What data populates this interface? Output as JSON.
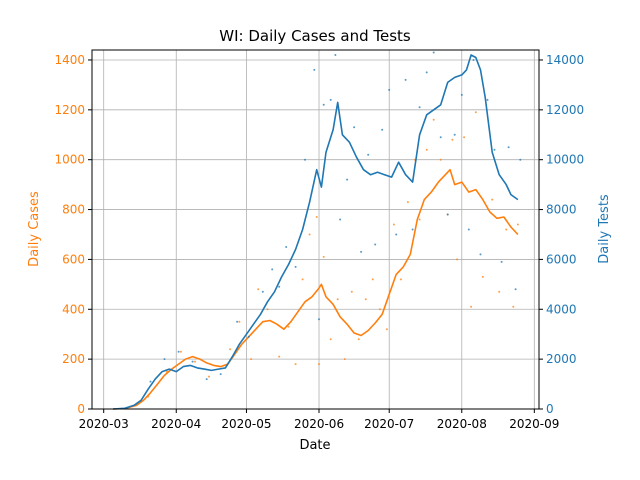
{
  "chart_data": {
    "type": "line",
    "title": "WI: Daily Cases and Tests",
    "xlabel": "Date",
    "ylabel_left": "Daily Cases",
    "ylabel_right": "Daily Tests",
    "xlim": [
      "2020-02-25",
      "2020-09-03"
    ],
    "ylim_left": [
      0,
      1440
    ],
    "ylim_right": [
      0,
      14400
    ],
    "grid": true,
    "x_ticks": [
      "2020-03",
      "2020-04",
      "2020-05",
      "2020-06",
      "2020-07",
      "2020-08",
      "2020-09"
    ],
    "left_ticks": [
      "0",
      "200",
      "400",
      "600",
      "800",
      "1000",
      "1200",
      "1400"
    ],
    "right_ticks": [
      "0",
      "2000",
      "4000",
      "6000",
      "8000",
      "10000",
      "12000",
      "14000"
    ],
    "colors": {
      "cases": "#ff7f0e",
      "tests": "#1f77b4",
      "grid": "#b0b0b0",
      "axis": "#000000"
    },
    "series": [
      {
        "name": "Daily Cases",
        "axis": "left",
        "color": "#ff7f0e",
        "points": [
          [
            "2020-03-05",
            0
          ],
          [
            "2020-03-10",
            2
          ],
          [
            "2020-03-15",
            15
          ],
          [
            "2020-03-18",
            35
          ],
          [
            "2020-03-21",
            65
          ],
          [
            "2020-03-24",
            100
          ],
          [
            "2020-03-27",
            135
          ],
          [
            "2020-03-30",
            160
          ],
          [
            "2020-04-02",
            180
          ],
          [
            "2020-04-05",
            200
          ],
          [
            "2020-04-08",
            210
          ],
          [
            "2020-04-11",
            200
          ],
          [
            "2020-04-14",
            185
          ],
          [
            "2020-04-17",
            175
          ],
          [
            "2020-04-20",
            170
          ],
          [
            "2020-04-23",
            180
          ],
          [
            "2020-04-26",
            220
          ],
          [
            "2020-04-29",
            260
          ],
          [
            "2020-05-02",
            290
          ],
          [
            "2020-05-05",
            320
          ],
          [
            "2020-05-08",
            350
          ],
          [
            "2020-05-11",
            355
          ],
          [
            "2020-05-14",
            340
          ],
          [
            "2020-05-17",
            320
          ],
          [
            "2020-05-20",
            350
          ],
          [
            "2020-05-23",
            390
          ],
          [
            "2020-05-26",
            430
          ],
          [
            "2020-05-29",
            450
          ],
          [
            "2020-06-01",
            485
          ],
          [
            "2020-06-02",
            500
          ],
          [
            "2020-06-04",
            450
          ],
          [
            "2020-06-07",
            420
          ],
          [
            "2020-06-10",
            370
          ],
          [
            "2020-06-13",
            340
          ],
          [
            "2020-06-16",
            305
          ],
          [
            "2020-06-19",
            295
          ],
          [
            "2020-06-22",
            315
          ],
          [
            "2020-06-25",
            345
          ],
          [
            "2020-06-28",
            380
          ],
          [
            "2020-07-01",
            460
          ],
          [
            "2020-07-04",
            540
          ],
          [
            "2020-07-07",
            570
          ],
          [
            "2020-07-10",
            620
          ],
          [
            "2020-07-13",
            760
          ],
          [
            "2020-07-16",
            840
          ],
          [
            "2020-07-19",
            870
          ],
          [
            "2020-07-22",
            910
          ],
          [
            "2020-07-25",
            940
          ],
          [
            "2020-07-27",
            960
          ],
          [
            "2020-07-29",
            900
          ],
          [
            "2020-08-01",
            910
          ],
          [
            "2020-08-04",
            870
          ],
          [
            "2020-08-07",
            880
          ],
          [
            "2020-08-10",
            840
          ],
          [
            "2020-08-13",
            790
          ],
          [
            "2020-08-16",
            765
          ],
          [
            "2020-08-19",
            770
          ],
          [
            "2020-08-22",
            730
          ],
          [
            "2020-08-25",
            700
          ]
        ],
        "scatter": [
          [
            "2020-03-20",
            50
          ],
          [
            "2020-03-28",
            150
          ],
          [
            "2020-04-03",
            230
          ],
          [
            "2020-04-09",
            190
          ],
          [
            "2020-04-15",
            130
          ],
          [
            "2020-04-24",
            240
          ],
          [
            "2020-04-28",
            350
          ],
          [
            "2020-05-03",
            200
          ],
          [
            "2020-05-06",
            480
          ],
          [
            "2020-05-10",
            400
          ],
          [
            "2020-05-15",
            210
          ],
          [
            "2020-05-19",
            330
          ],
          [
            "2020-05-22",
            180
          ],
          [
            "2020-05-25",
            520
          ],
          [
            "2020-05-28",
            700
          ],
          [
            "2020-05-31",
            770
          ],
          [
            "2020-06-01",
            180
          ],
          [
            "2020-06-03",
            610
          ],
          [
            "2020-06-06",
            280
          ],
          [
            "2020-06-09",
            440
          ],
          [
            "2020-06-12",
            200
          ],
          [
            "2020-06-15",
            470
          ],
          [
            "2020-06-18",
            280
          ],
          [
            "2020-06-21",
            440
          ],
          [
            "2020-06-24",
            520
          ],
          [
            "2020-06-27",
            400
          ],
          [
            "2020-06-30",
            320
          ],
          [
            "2020-07-03",
            740
          ],
          [
            "2020-07-06",
            520
          ],
          [
            "2020-07-09",
            830
          ],
          [
            "2020-07-12",
            1000
          ],
          [
            "2020-07-14",
            760
          ],
          [
            "2020-07-17",
            1040
          ],
          [
            "2020-07-20",
            1160
          ],
          [
            "2020-07-23",
            1000
          ],
          [
            "2020-07-26",
            780
          ],
          [
            "2020-07-28",
            1080
          ],
          [
            "2020-07-30",
            600
          ],
          [
            "2020-08-02",
            1090
          ],
          [
            "2020-08-05",
            410
          ],
          [
            "2020-08-07",
            1190
          ],
          [
            "2020-08-10",
            530
          ],
          [
            "2020-08-14",
            840
          ],
          [
            "2020-08-17",
            470
          ],
          [
            "2020-08-20",
            720
          ],
          [
            "2020-08-23",
            410
          ],
          [
            "2020-08-25",
            740
          ]
        ]
      },
      {
        "name": "Daily Tests",
        "axis": "right",
        "color": "#1f77b4",
        "points": [
          [
            "2020-03-05",
            0
          ],
          [
            "2020-03-10",
            30
          ],
          [
            "2020-03-14",
            150
          ],
          [
            "2020-03-17",
            350
          ],
          [
            "2020-03-20",
            800
          ],
          [
            "2020-03-23",
            1200
          ],
          [
            "2020-03-26",
            1500
          ],
          [
            "2020-03-29",
            1600
          ],
          [
            "2020-04-01",
            1500
          ],
          [
            "2020-04-04",
            1700
          ],
          [
            "2020-04-07",
            1750
          ],
          [
            "2020-04-10",
            1650
          ],
          [
            "2020-04-13",
            1600
          ],
          [
            "2020-04-16",
            1550
          ],
          [
            "2020-04-19",
            1600
          ],
          [
            "2020-04-22",
            1650
          ],
          [
            "2020-04-25",
            2100
          ],
          [
            "2020-04-28",
            2600
          ],
          [
            "2020-05-01",
            3000
          ],
          [
            "2020-05-04",
            3400
          ],
          [
            "2020-05-07",
            3800
          ],
          [
            "2020-05-10",
            4300
          ],
          [
            "2020-05-13",
            4700
          ],
          [
            "2020-05-16",
            5300
          ],
          [
            "2020-05-19",
            5800
          ],
          [
            "2020-05-22",
            6400
          ],
          [
            "2020-05-25",
            7200
          ],
          [
            "2020-05-28",
            8300
          ],
          [
            "2020-05-31",
            9600
          ],
          [
            "2020-06-02",
            8900
          ],
          [
            "2020-06-04",
            10300
          ],
          [
            "2020-06-07",
            11200
          ],
          [
            "2020-06-09",
            12300
          ],
          [
            "2020-06-11",
            11000
          ],
          [
            "2020-06-14",
            10700
          ],
          [
            "2020-06-17",
            10100
          ],
          [
            "2020-06-20",
            9600
          ],
          [
            "2020-06-23",
            9400
          ],
          [
            "2020-06-26",
            9500
          ],
          [
            "2020-06-29",
            9400
          ],
          [
            "2020-07-02",
            9300
          ],
          [
            "2020-07-05",
            9900
          ],
          [
            "2020-07-08",
            9400
          ],
          [
            "2020-07-11",
            9100
          ],
          [
            "2020-07-14",
            11000
          ],
          [
            "2020-07-17",
            11800
          ],
          [
            "2020-07-20",
            12000
          ],
          [
            "2020-07-23",
            12200
          ],
          [
            "2020-07-26",
            13100
          ],
          [
            "2020-07-29",
            13300
          ],
          [
            "2020-08-01",
            13400
          ],
          [
            "2020-08-03",
            13600
          ],
          [
            "2020-08-05",
            14200
          ],
          [
            "2020-08-07",
            14100
          ],
          [
            "2020-08-09",
            13600
          ],
          [
            "2020-08-11",
            12500
          ],
          [
            "2020-08-14",
            10300
          ],
          [
            "2020-08-17",
            9400
          ],
          [
            "2020-08-20",
            9000
          ],
          [
            "2020-08-22",
            8600
          ],
          [
            "2020-08-25",
            8400
          ]
        ],
        "scatter": [
          [
            "2020-03-21",
            1100
          ],
          [
            "2020-03-27",
            2000
          ],
          [
            "2020-04-02",
            2300
          ],
          [
            "2020-04-08",
            1900
          ],
          [
            "2020-04-14",
            1200
          ],
          [
            "2020-04-20",
            1400
          ],
          [
            "2020-04-27",
            3500
          ],
          [
            "2020-05-02",
            2900
          ],
          [
            "2020-05-08",
            4700
          ],
          [
            "2020-05-12",
            5600
          ],
          [
            "2020-05-15",
            4900
          ],
          [
            "2020-05-18",
            6500
          ],
          [
            "2020-05-22",
            5700
          ],
          [
            "2020-05-26",
            10000
          ],
          [
            "2020-05-30",
            13600
          ],
          [
            "2020-06-01",
            3600
          ],
          [
            "2020-06-03",
            12200
          ],
          [
            "2020-06-06",
            12400
          ],
          [
            "2020-06-08",
            14200
          ],
          [
            "2020-06-10",
            7600
          ],
          [
            "2020-06-13",
            9200
          ],
          [
            "2020-06-16",
            11300
          ],
          [
            "2020-06-19",
            6300
          ],
          [
            "2020-06-22",
            10200
          ],
          [
            "2020-06-25",
            6600
          ],
          [
            "2020-06-28",
            11200
          ],
          [
            "2020-07-01",
            12800
          ],
          [
            "2020-07-04",
            7000
          ],
          [
            "2020-07-08",
            13200
          ],
          [
            "2020-07-11",
            7200
          ],
          [
            "2020-07-14",
            12100
          ],
          [
            "2020-07-17",
            13500
          ],
          [
            "2020-07-20",
            14300
          ],
          [
            "2020-07-23",
            10900
          ],
          [
            "2020-07-26",
            7800
          ],
          [
            "2020-07-29",
            11000
          ],
          [
            "2020-08-01",
            12600
          ],
          [
            "2020-08-04",
            7200
          ],
          [
            "2020-08-06",
            14000
          ],
          [
            "2020-08-09",
            6200
          ],
          [
            "2020-08-12",
            12400
          ],
          [
            "2020-08-15",
            10400
          ],
          [
            "2020-08-18",
            5900
          ],
          [
            "2020-08-21",
            10500
          ],
          [
            "2020-08-24",
            4800
          ],
          [
            "2020-08-26",
            10000
          ]
        ]
      }
    ]
  }
}
